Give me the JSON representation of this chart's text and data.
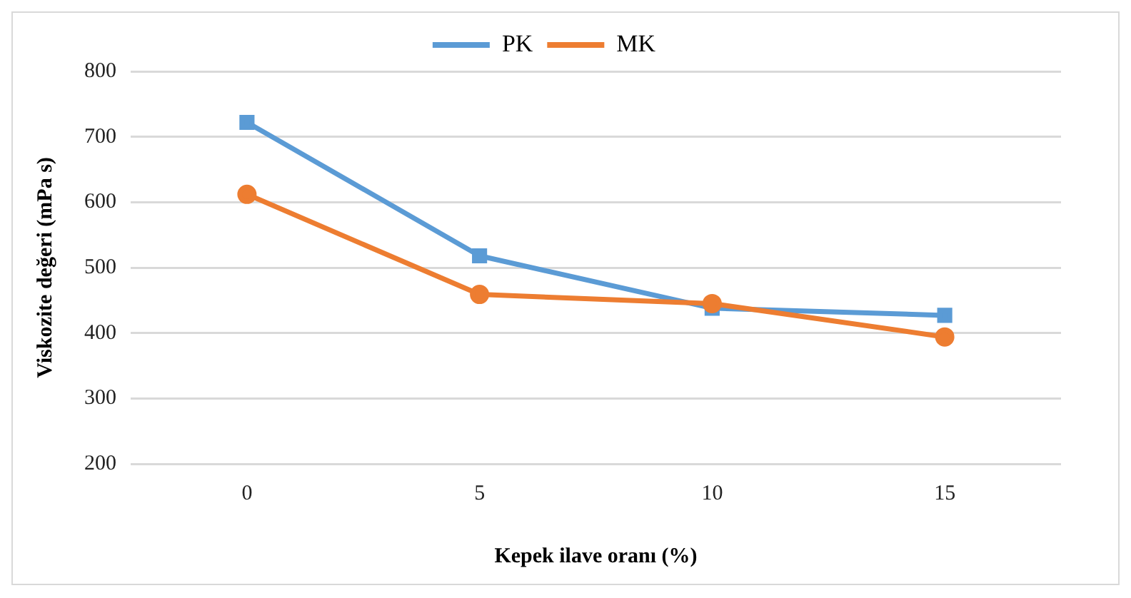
{
  "chart_data": {
    "type": "line",
    "xlabel": "Kepek ilave oranı (%)",
    "ylabel": "Viskozite değeri (mPa s)",
    "categories": [
      "0",
      "5",
      "10",
      "15"
    ],
    "series": [
      {
        "name": "PK",
        "color": "#5b9bd5",
        "marker": "square",
        "values": [
          722,
          518,
          438,
          427
        ]
      },
      {
        "name": "MK",
        "color": "#ed7d31",
        "marker": "circle",
        "values": [
          612,
          459,
          445,
          394
        ]
      }
    ],
    "ylim": [
      200,
      800
    ],
    "yticks": [
      200,
      300,
      400,
      500,
      600,
      700,
      800
    ],
    "grid": "y",
    "legend": "top",
    "line_style": "solid"
  }
}
